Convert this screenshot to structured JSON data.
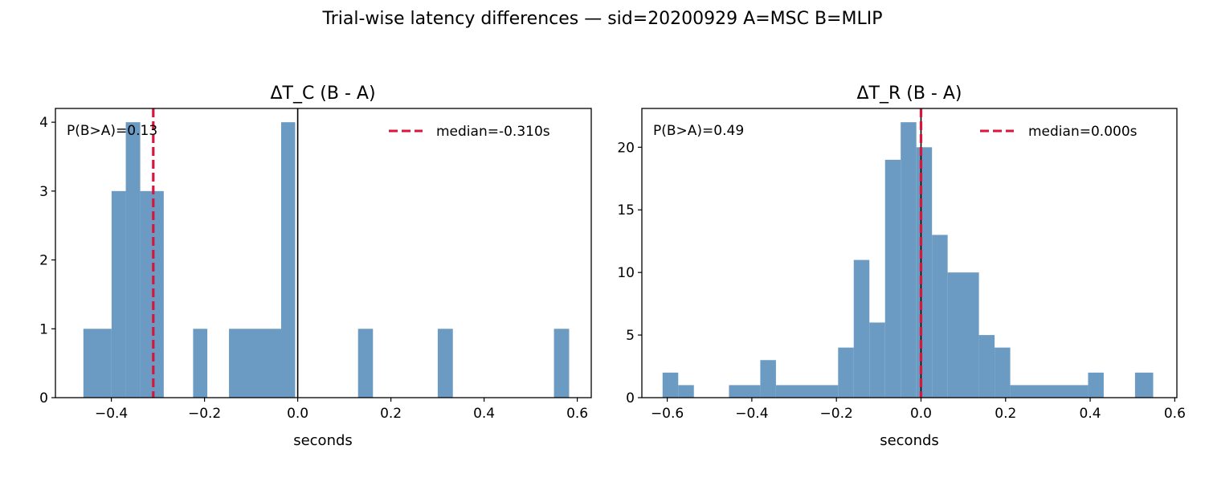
{
  "suptitle": "Trial-wise latency differences — sid=20200929  A=MSC  B=MLIP",
  "colors": {
    "bar": "#6b9bc3",
    "median": "#dc143c",
    "zero_line": "#000000"
  },
  "chart_data": [
    {
      "type": "bar",
      "title": "ΔT_C (B - A)",
      "xlabel": "seconds",
      "ylabel": "",
      "xlim": [
        -0.52,
        0.63
      ],
      "ylim": [
        0,
        4.2
      ],
      "xticks": [
        -0.4,
        -0.2,
        0.0,
        0.2,
        0.4,
        0.6
      ],
      "xtick_labels": [
        "−0.4",
        "−0.2",
        "0.0",
        "0.2",
        "0.4",
        "0.6"
      ],
      "yticks": [
        0,
        1,
        2,
        3,
        4
      ],
      "ytick_labels": [
        "0",
        "1",
        "2",
        "3",
        "4"
      ],
      "bins": [
        {
          "x0": -0.46,
          "x1": -0.3995,
          "count": 1
        },
        {
          "x0": -0.3995,
          "x1": -0.369,
          "count": 3
        },
        {
          "x0": -0.369,
          "x1": -0.338,
          "count": 4
        },
        {
          "x0": -0.338,
          "x1": -0.2875,
          "count": 3
        },
        {
          "x0": -0.2245,
          "x1": -0.194,
          "count": 1
        },
        {
          "x0": -0.1475,
          "x1": -0.0355,
          "count": 1
        },
        {
          "x0": -0.0355,
          "x1": -0.0055,
          "count": 4
        },
        {
          "x0": 0.1295,
          "x1": 0.1615,
          "count": 1
        },
        {
          "x0": 0.3005,
          "x1": 0.333,
          "count": 1
        },
        {
          "x0": 0.55,
          "x1": 0.5825,
          "count": 1
        }
      ],
      "median": -0.31,
      "zero_line": 0.0,
      "annotation": "P(B>A)=0.13",
      "legend": {
        "label": "median=-0.310s",
        "position": "top-right"
      }
    },
    {
      "type": "bar",
      "title": "ΔT_R (B - A)",
      "xlabel": "seconds",
      "ylabel": "",
      "xlim": [
        -0.66,
        0.605
      ],
      "ylim": [
        0,
        23.1
      ],
      "xticks": [
        -0.6,
        -0.4,
        -0.2,
        0.0,
        0.2,
        0.4,
        0.6
      ],
      "xtick_labels": [
        "−0.6",
        "−0.4",
        "−0.2",
        "0.0",
        "0.2",
        "0.4",
        "0.6"
      ],
      "yticks": [
        0,
        5,
        10,
        15,
        20
      ],
      "ytick_labels": [
        "0",
        "5",
        "10",
        "15",
        "20"
      ],
      "bins": [
        {
          "x0": -0.611,
          "x1": -0.574,
          "count": 2
        },
        {
          "x0": -0.574,
          "x1": -0.537,
          "count": 1
        },
        {
          "x0": -0.454,
          "x1": -0.38,
          "count": 1
        },
        {
          "x0": -0.38,
          "x1": -0.343,
          "count": 3
        },
        {
          "x0": -0.343,
          "x1": -0.196,
          "count": 1
        },
        {
          "x0": -0.196,
          "x1": -0.159,
          "count": 4
        },
        {
          "x0": -0.159,
          "x1": -0.122,
          "count": 11
        },
        {
          "x0": -0.122,
          "x1": -0.085,
          "count": 6
        },
        {
          "x0": -0.085,
          "x1": -0.048,
          "count": 19
        },
        {
          "x0": -0.048,
          "x1": -0.011,
          "count": 22
        },
        {
          "x0": -0.011,
          "x1": 0.026,
          "count": 20
        },
        {
          "x0": 0.026,
          "x1": 0.063,
          "count": 13
        },
        {
          "x0": 0.063,
          "x1": 0.137,
          "count": 10
        },
        {
          "x0": 0.137,
          "x1": 0.174,
          "count": 5
        },
        {
          "x0": 0.174,
          "x1": 0.211,
          "count": 4
        },
        {
          "x0": 0.211,
          "x1": 0.395,
          "count": 1
        },
        {
          "x0": 0.395,
          "x1": 0.432,
          "count": 2
        },
        {
          "x0": 0.506,
          "x1": 0.549,
          "count": 2
        }
      ],
      "median": 0.0,
      "zero_line": 0.0,
      "annotation": "P(B>A)=0.49",
      "legend": {
        "label": "median=0.000s",
        "position": "top-right"
      }
    }
  ]
}
